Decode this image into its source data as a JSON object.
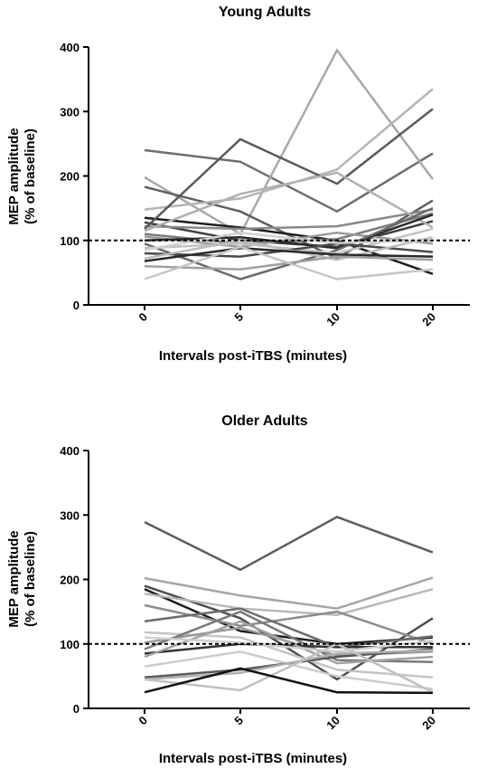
{
  "chart_data": [
    {
      "type": "line",
      "title": "Young Adults",
      "xlabel": "Intervals post-iTBS (minutes)",
      "ylabel": [
        "MEP amplitude",
        "(% of baseline)"
      ],
      "categories": [
        "0",
        "5",
        "10",
        "20"
      ],
      "yticks": [
        "0",
        "100",
        "200",
        "300",
        "400"
      ],
      "ylim": [
        0,
        400
      ],
      "reference_line": 100,
      "grid": false,
      "series": [
        {
          "values": [
            240,
            222,
            145,
            235
          ],
          "color": "#6e6e6e"
        },
        {
          "values": [
            198,
            110,
            395,
            195
          ],
          "color": "#a8a8a8"
        },
        {
          "values": [
            183,
            145,
            72,
            162
          ],
          "color": "#5f5f5f"
        },
        {
          "values": [
            148,
            165,
            210,
            335
          ],
          "color": "#b4b4b4"
        },
        {
          "values": [
            135,
            120,
            100,
            48
          ],
          "color": "#1e1e1e"
        },
        {
          "values": [
            128,
            100,
            90,
            130
          ],
          "color": "#3f3f3f"
        },
        {
          "values": [
            122,
            118,
            122,
            148
          ],
          "color": "#8a8a8a"
        },
        {
          "values": [
            118,
            257,
            188,
            304
          ],
          "color": "#5a5a5a"
        },
        {
          "values": [
            115,
            172,
            205,
            120
          ],
          "color": "#b0b0b0"
        },
        {
          "values": [
            110,
            95,
            102,
            142
          ],
          "color": "#7b7b7b"
        },
        {
          "values": [
            106,
            90,
            112,
            95
          ],
          "color": "#9a9a9a"
        },
        {
          "values": [
            100,
            105,
            88,
            140
          ],
          "color": "#2c2c2c"
        },
        {
          "values": [
            95,
            40,
            85,
            150
          ],
          "color": "#6a6a6a"
        },
        {
          "values": [
            88,
            95,
            80,
            118
          ],
          "color": "#c2c2c2"
        },
        {
          "values": [
            80,
            75,
            95,
            82
          ],
          "color": "#4a4a4a"
        },
        {
          "values": [
            72,
            100,
            70,
            105
          ],
          "color": "#bcbcbc"
        },
        {
          "values": [
            68,
            88,
            78,
            75
          ],
          "color": "#2a2a2a"
        },
        {
          "values": [
            60,
            55,
            75,
            70
          ],
          "color": "#a0a0a0"
        },
        {
          "values": [
            40,
            90,
            40,
            55
          ],
          "color": "#c6c6c6"
        },
        {
          "values": [
            85,
            112,
            96,
            100
          ],
          "color": "#d0d0d0"
        }
      ]
    },
    {
      "type": "line",
      "title": "Older Adults",
      "xlabel": "Intervals post-iTBS (minutes)",
      "ylabel": [
        "MEP amplitude",
        "(% of baseline)"
      ],
      "categories": [
        "0",
        "5",
        "10",
        "20"
      ],
      "yticks": [
        "0",
        "100",
        "200",
        "300",
        "400"
      ],
      "ylim": [
        0,
        400
      ],
      "reference_line": 100,
      "grid": false,
      "series": [
        {
          "values": [
            289,
            215,
            297,
            242
          ],
          "color": "#5e5e5e"
        },
        {
          "values": [
            202,
            175,
            155,
            203
          ],
          "color": "#a6a6a6"
        },
        {
          "values": [
            190,
            140,
            45,
            140
          ],
          "color": "#4e4e4e"
        },
        {
          "values": [
            185,
            120,
            100,
            110
          ],
          "color": "#1f1f1f"
        },
        {
          "values": [
            178,
            155,
            145,
            185
          ],
          "color": "#b8b8b8"
        },
        {
          "values": [
            160,
            128,
            150,
            100
          ],
          "color": "#8c8c8c"
        },
        {
          "values": [
            135,
            155,
            95,
            112
          ],
          "color": "#6c6c6c"
        },
        {
          "values": [
            118,
            110,
            60,
            48
          ],
          "color": "#c4c4c4"
        },
        {
          "values": [
            102,
            125,
            82,
            88
          ],
          "color": "#979797"
        },
        {
          "values": [
            92,
            150,
            75,
            72
          ],
          "color": "#7a7a7a"
        },
        {
          "values": [
            85,
            100,
            95,
            95
          ],
          "color": "#333333"
        },
        {
          "values": [
            80,
            135,
            70,
            80
          ],
          "color": "#a2a2a2"
        },
        {
          "values": [
            65,
            88,
            50,
            30
          ],
          "color": "#cccccc"
        },
        {
          "values": [
            48,
            60,
            80,
            92
          ],
          "color": "#585858"
        },
        {
          "values": [
            45,
            55,
            85,
            90
          ],
          "color": "#b0b0b0"
        },
        {
          "values": [
            45,
            28,
            100,
            25
          ],
          "color": "#c0c0c0"
        },
        {
          "values": [
            25,
            62,
            25,
            24
          ],
          "color": "#111111"
        },
        {
          "values": [
            110,
            102,
            88,
            105
          ],
          "color": "#d0d0d0"
        }
      ]
    }
  ]
}
